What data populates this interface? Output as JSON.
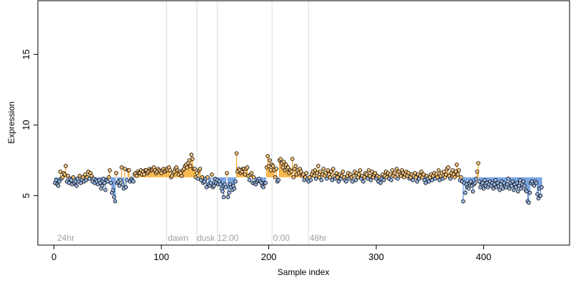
{
  "chart_data": {
    "type": "scatter",
    "title": "",
    "xlabel": "Sample index",
    "ylabel": "Expression",
    "xlim": [
      -15,
      480
    ],
    "ylim": [
      1.5,
      18.8
    ],
    "x_ticks": [
      0,
      100,
      200,
      300,
      400
    ],
    "y_ticks": [
      5,
      10,
      15
    ],
    "baseline": 6.3,
    "colors": {
      "above_segment": "#f5a623",
      "below_segment": "#5b8fd9",
      "point_fill_above": "#f6c27a",
      "point_fill_below": "#9ab8e6",
      "point_stroke": "#000000",
      "marker_line": "#dcdcdc"
    },
    "annotations": [
      {
        "x": 3,
        "text": "24hr"
      },
      {
        "x": 106,
        "text": "dawn"
      },
      {
        "x": 133,
        "text": "dusk"
      },
      {
        "x": 152,
        "text": "12:00"
      },
      {
        "x": 204,
        "text": "0:00"
      },
      {
        "x": 238,
        "text": "48hr"
      }
    ],
    "marker_lines": [
      105,
      133,
      152,
      203,
      237
    ],
    "points_x_start": 1,
    "points_y": [
      5.9,
      6.1,
      5.8,
      5.7,
      6.0,
      6.7,
      6.2,
      6.3,
      6.6,
      6.5,
      7.1,
      6.0,
      6.4,
      5.9,
      6.2,
      6.1,
      5.8,
      6.3,
      5.9,
      6.0,
      5.7,
      6.2,
      6.0,
      6.4,
      5.9,
      6.1,
      6.3,
      6.0,
      6.5,
      6.1,
      6.3,
      6.7,
      6.2,
      6.6,
      6.4,
      6.0,
      6.2,
      5.9,
      6.1,
      6.0,
      5.8,
      6.1,
      5.9,
      5.5,
      5.7,
      6.2,
      5.9,
      5.4,
      6.1,
      6.0,
      6.3,
      6.8,
      5.9,
      5.2,
      5.4,
      4.9,
      4.6,
      6.6,
      5.9,
      6.0,
      5.7,
      6.1,
      7.0,
      5.8,
      5.5,
      6.9,
      5.6,
      6.1,
      6.8,
      6.8,
      6.0,
      6.2,
      6.1,
      6.0,
      6.5,
      6.6,
      6.4,
      6.7,
      6.6,
      6.6,
      6.8,
      6.5,
      6.7,
      6.5,
      6.8,
      6.8,
      6.6,
      6.7,
      6.9,
      6.8,
      6.8,
      6.9,
      7.0,
      6.8,
      6.6,
      6.7,
      6.9,
      6.8,
      6.7,
      6.6,
      6.8,
      6.9,
      6.7,
      6.8,
      6.9,
      6.8,
      7.0,
      6.8,
      6.3,
      6.4,
      6.6,
      6.7,
      6.9,
      7.0,
      6.8,
      6.5,
      6.7,
      6.6,
      6.4,
      6.8,
      6.9,
      7.1,
      7.2,
      7.0,
      7.3,
      7.5,
      7.1,
      7.9,
      7.6,
      6.9,
      6.9,
      6.3,
      6.6,
      6.2,
      6.8,
      6.9,
      6.1,
      6.3,
      5.9,
      6.0,
      6.2,
      5.6,
      6.3,
      5.8,
      5.7,
      5.9,
      6.5,
      5.6,
      5.7,
      6.2,
      5.9,
      6.1,
      5.8,
      6.0,
      5.8,
      5.5,
      5.3,
      4.9,
      5.8,
      5.6,
      6.6,
      4.9,
      5.2,
      5.8,
      5.6,
      5.4,
      5.7,
      5.5,
      6.0,
      8.0,
      6.7,
      6.9,
      6.8,
      6.6,
      6.7,
      6.9,
      6.9,
      6.5,
      6.9,
      7.0,
      6.4,
      6.1,
      6.5,
      6.6,
      5.9,
      6.3,
      5.9,
      5.8,
      6.0,
      6.1,
      6.2,
      6.0,
      5.9,
      5.7,
      5.6,
      5.9,
      5.9,
      7.0,
      7.8,
      7.1,
      7.5,
      6.8,
      7.2,
      7.1,
      6.8,
      6.3,
      6.9,
      6.0,
      6.1,
      7.5,
      7.6,
      7.3,
      7.0,
      7.4,
      6.8,
      7.2,
      6.9,
      7.0,
      6.6,
      6.8,
      6.7,
      7.6,
      6.3,
      6.9,
      7.1,
      6.5,
      6.8,
      6.6,
      6.9,
      6.7,
      6.4,
      6.5,
      6.1,
      6.3,
      6.6,
      6.2,
      6.0,
      6.3,
      6.1,
      6.5,
      6.7,
      6.4,
      6.8,
      6.2,
      6.6,
      7.1,
      6.3,
      6.7,
      6.1,
      6.5,
      6.9,
      6.4,
      6.6,
      6.2,
      6.8,
      6.5,
      6.3,
      6.7,
      6.1,
      6.9,
      6.4,
      6.2,
      6.6,
      6.3,
      6.0,
      6.5,
      6.2,
      6.4,
      6.7,
      6.3,
      6.1,
      6.0,
      6.4,
      6.6,
      6.2,
      6.5,
      6.3,
      6.0,
      6.4,
      6.7,
      6.1,
      6.6,
      6.3,
      6.5,
      6.8,
      6.2,
      6.4,
      6.0,
      6.3,
      6.6,
      6.5,
      6.2,
      6.8,
      6.4,
      6.1,
      6.7,
      6.3,
      6.5,
      6.6,
      6.2,
      6.4,
      6.0,
      6.3,
      5.9,
      6.2,
      6.5,
      6.1,
      6.4,
      6.7,
      6.3,
      6.6,
      6.2,
      6.5,
      6.1,
      6.8,
      6.4,
      6.6,
      6.3,
      6.9,
      6.2,
      6.7,
      6.5,
      6.4,
      6.8,
      6.6,
      6.3,
      6.5,
      6.7,
      6.4,
      6.6,
      6.2,
      6.3,
      6.5,
      6.1,
      6.4,
      6.6,
      6.3,
      6.0,
      6.5,
      6.2,
      6.4,
      6.7,
      6.3,
      6.5,
      6.1,
      5.9,
      6.4,
      6.2,
      6.0,
      6.3,
      6.5,
      6.1,
      6.4,
      6.6,
      6.2,
      6.5,
      6.3,
      6.8,
      6.1,
      6.4,
      6.6,
      6.2,
      6.7,
      6.3,
      6.5,
      6.9,
      7.0,
      6.4,
      6.2,
      6.6,
      6.8,
      6.5,
      6.3,
      6.7,
      7.2,
      6.5,
      6.8,
      6.1,
      6.3,
      6.0,
      4.6,
      5.9,
      5.2,
      5.8,
      5.6,
      5.5,
      5.9,
      6.0,
      5.7,
      5.3,
      5.8,
      5.9,
      6.2,
      6.7,
      7.3,
      6.0,
      5.6,
      5.8,
      5.9,
      5.5,
      6.1,
      5.7,
      5.9,
      5.6,
      5.8,
      6.0,
      5.7,
      5.9,
      5.5,
      5.8,
      6.1,
      5.6,
      5.9,
      5.7,
      5.4,
      5.8,
      6.0,
      5.5,
      5.9,
      5.7,
      5.6,
      5.8,
      6.2,
      5.5,
      5.9,
      5.7,
      6.0,
      5.4,
      5.8,
      5.6,
      5.9,
      5.3,
      5.7,
      6.1,
      5.5,
      5.8,
      6.0,
      5.7,
      5.4,
      5.3,
      4.6,
      4.5,
      5.2,
      5.9,
      6.0,
      5.8,
      5.7,
      6.0,
      5.9,
      5.1,
      4.8,
      5.5,
      5.0,
      5.6
    ]
  }
}
